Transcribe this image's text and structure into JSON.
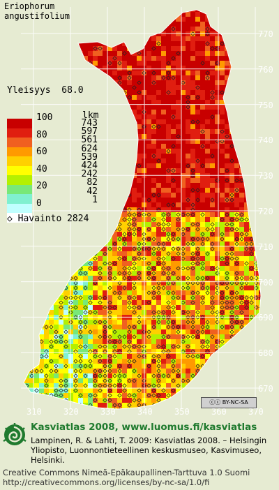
{
  "species": [
    "Eriophorum",
    "angustifolium"
  ],
  "frequency": {
    "label": "Yleisyys",
    "value": "68.0"
  },
  "legend": {
    "percent_labels": [
      "100",
      "80",
      "60",
      "40",
      "20",
      "0"
    ],
    "colors": [
      "#c80000",
      "#e01e10",
      "#f06020",
      "#ff9a00",
      "#ffd000",
      "#ffff00",
      "#b4f000",
      "#78e878",
      "#80f0d0",
      "#c0ffff",
      "#ffffff"
    ],
    "count_header": "lkm",
    "counts": [
      "743",
      "597",
      "561",
      "624",
      "539",
      "424",
      "242",
      "82",
      "42",
      "1"
    ]
  },
  "observations": {
    "symbol": "◇",
    "label": "Havainto",
    "count": "2824"
  },
  "grid": {
    "y_labels": [
      "770",
      "760",
      "750",
      "740",
      "730",
      "720",
      "710",
      "700",
      "690",
      "680",
      "670"
    ],
    "x_labels": [
      "310",
      "320",
      "330",
      "340",
      "350",
      "360",
      "370"
    ]
  },
  "cc_badge": "BY-NC-SA",
  "footer": {
    "brand": "Kasviatlas 2008, www.luomus.fi/kasviatlas",
    "citation": "Lampinen, R. & Lahti, T. 2009: Kasviatlas 2008. – Helsingin Yliopisto, Luonnontieteellinen keskusmuseo, Kasvimuseo, Helsinki.",
    "license_line1": "Creative Commons Nimeä-Epäkaupallinen-Tarttuva 1.0 Suomi",
    "license_line2": "http://creativecommons.org/licenses/by-nc-sa/1.0/fi"
  }
}
